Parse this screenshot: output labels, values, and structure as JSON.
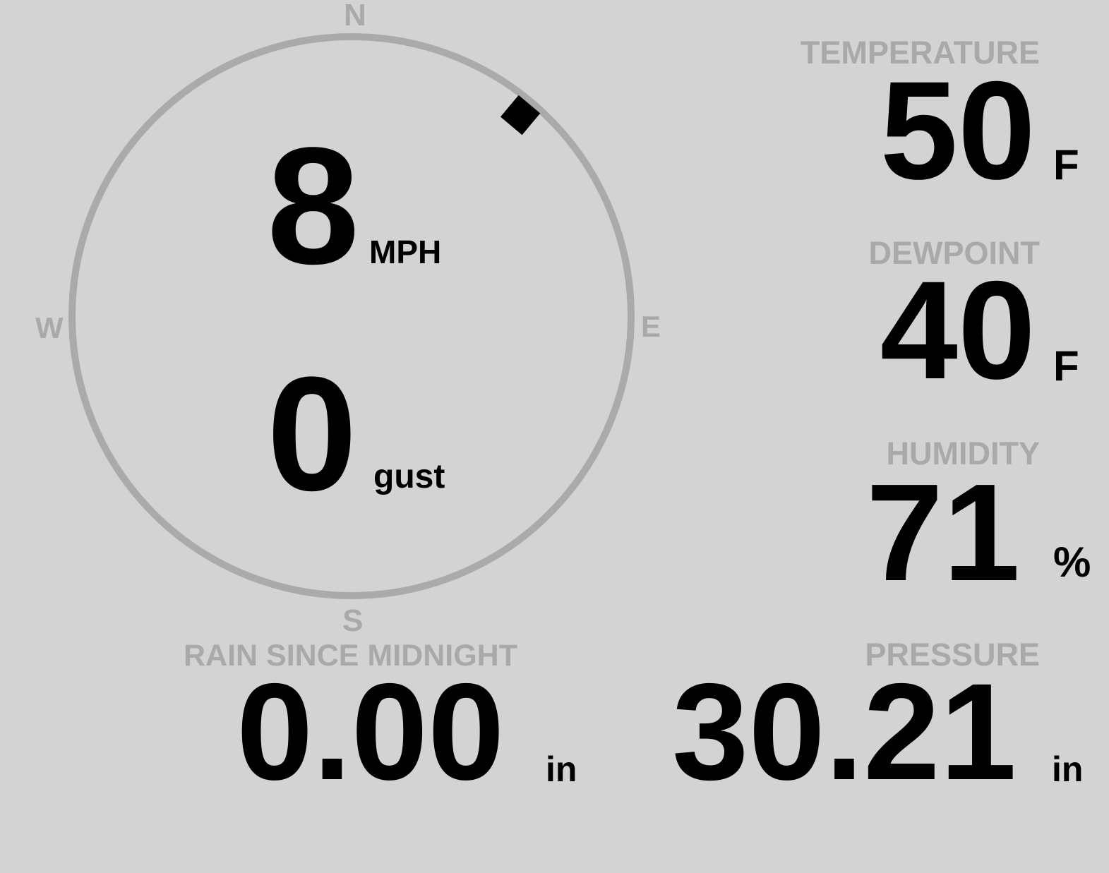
{
  "wind": {
    "speed": "8",
    "speed_unit": "MPH",
    "gust": "0",
    "gust_label": "gust",
    "direction_degrees": 40,
    "compass": {
      "n": "N",
      "e": "E",
      "s": "S",
      "w": "W"
    },
    "ring_color": "#aaaaaa",
    "pointer_color": "#000000"
  },
  "temperature": {
    "label": "TEMPERATURE",
    "value": "50",
    "unit": "F"
  },
  "dewpoint": {
    "label": "DEWPOINT",
    "value": "40",
    "unit": "F"
  },
  "humidity": {
    "label": "HUMIDITY",
    "value": "71",
    "unit": "%"
  },
  "pressure": {
    "label": "PRESSURE",
    "value": "30.21",
    "unit": "in"
  },
  "rain": {
    "label": "RAIN SINCE MIDNIGHT",
    "value": "0.00",
    "unit": "in"
  },
  "colors": {
    "background": "#d3d3d3",
    "label": "#a9a9a9",
    "value": "#000000"
  }
}
